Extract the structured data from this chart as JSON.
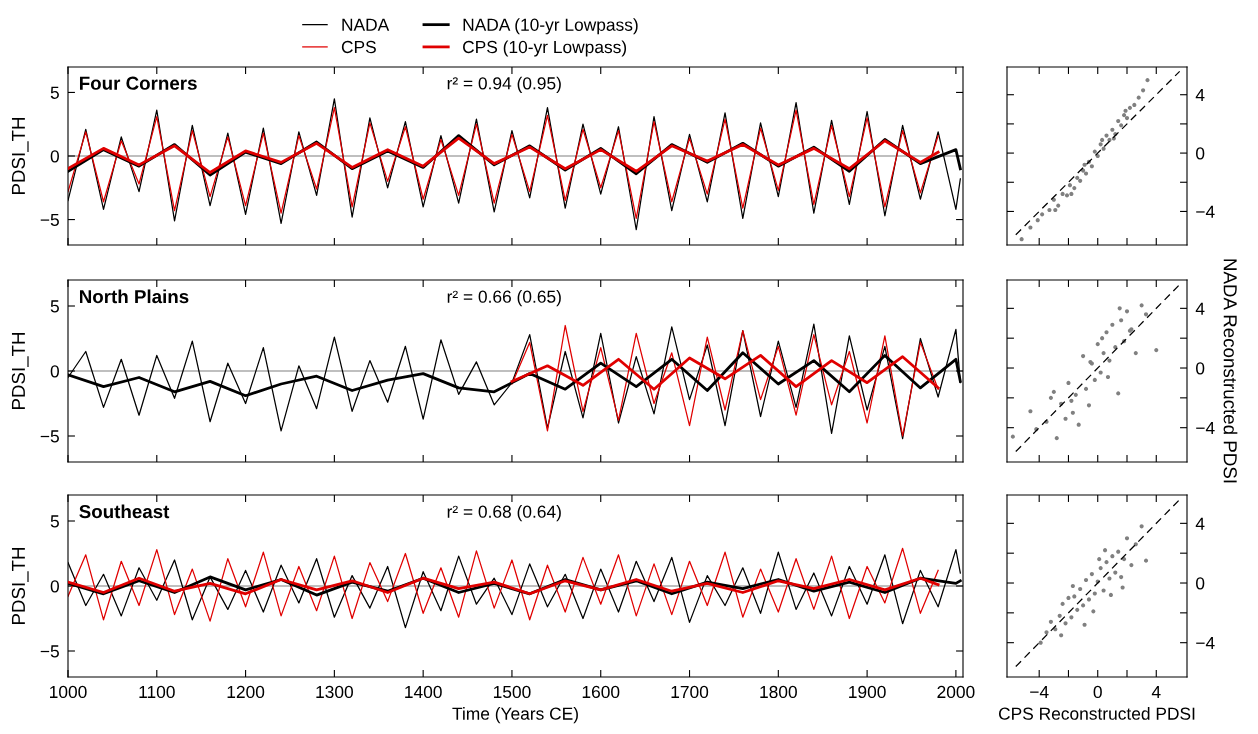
{
  "chart_data": [
    {
      "type": "line",
      "title": "Four Corners",
      "annotations": [
        "r² = 0.94 (0.95)"
      ],
      "ylabel": "PDSI_TH",
      "xlim": [
        1000,
        2008
      ],
      "ylim": [
        -7,
        7
      ],
      "xticks": [
        1000,
        1100,
        1200,
        1300,
        1400,
        1500,
        1600,
        1700,
        1800,
        1900,
        2000
      ],
      "yticks": [
        {
          "value": -5,
          "label": "−5"
        },
        0,
        5
      ],
      "tick_labels": "y",
      "legend": "top",
      "ref_lines": [
        {
          "axis": "y",
          "value": 0,
          "color": "#808080"
        }
      ],
      "series": [
        {
          "name": "NADA",
          "color": "#000000",
          "x": [
            1000,
            1020,
            1040,
            1060,
            1080,
            1100,
            1120,
            1140,
            1160,
            1180,
            1200,
            1220,
            1240,
            1260,
            1280,
            1300,
            1320,
            1340,
            1360,
            1380,
            1400,
            1420,
            1440,
            1460,
            1480,
            1500,
            1520,
            1540,
            1560,
            1580,
            1600,
            1620,
            1640,
            1660,
            1680,
            1700,
            1720,
            1740,
            1760,
            1780,
            1800,
            1820,
            1840,
            1860,
            1880,
            1900,
            1920,
            1940,
            1960,
            1980,
            2000,
            2005
          ],
          "values": [
            -3.5,
            2.1,
            -4.2,
            1.5,
            -2.8,
            3.6,
            -5.1,
            2.4,
            -3.9,
            1.8,
            -4.6,
            2.2,
            -5.3,
            1.9,
            -3.1,
            4.5,
            -4.8,
            3.0,
            -2.5,
            2.7,
            -4.0,
            1.6,
            -3.7,
            2.9,
            -4.4,
            2.0,
            -3.3,
            3.8,
            -4.1,
            2.5,
            -3.0,
            2.3,
            -5.8,
            3.1,
            -4.3,
            1.7,
            -3.6,
            3.4,
            -4.9,
            2.6,
            -3.2,
            4.2,
            -4.5,
            2.8,
            -3.8,
            3.5,
            -4.7,
            2.4,
            -3.4,
            1.9,
            -4.2,
            -1.8
          ]
        },
        {
          "name": "CPS",
          "color": "#e00000",
          "x": [
            1000,
            1020,
            1040,
            1060,
            1080,
            1100,
            1120,
            1140,
            1160,
            1180,
            1200,
            1220,
            1240,
            1260,
            1280,
            1300,
            1320,
            1340,
            1360,
            1380,
            1400,
            1420,
            1440,
            1460,
            1480,
            1500,
            1520,
            1540,
            1560,
            1580,
            1600,
            1620,
            1640,
            1660,
            1680,
            1700,
            1720,
            1740,
            1760,
            1780,
            1800,
            1820,
            1840,
            1860,
            1880,
            1900,
            1920,
            1940,
            1960,
            1980
          ],
          "values": [
            -2.8,
            1.9,
            -3.6,
            1.2,
            -2.2,
            3.1,
            -4.3,
            2.0,
            -3.2,
            1.5,
            -3.9,
            1.8,
            -4.5,
            1.6,
            -2.6,
            3.8,
            -4.0,
            2.6,
            -2.0,
            2.3,
            -3.4,
            1.3,
            -3.1,
            2.5,
            -3.7,
            1.7,
            -2.8,
            3.2,
            -3.5,
            2.1,
            -2.5,
            2.0,
            -4.9,
            2.7,
            -3.6,
            1.4,
            -3.0,
            2.9,
            -4.1,
            2.2,
            -2.7,
            3.6,
            -3.8,
            2.4,
            -3.2,
            3.0,
            -4.0,
            2.0,
            -2.9,
            1.6
          ]
        },
        {
          "name": "NADA (10-yr Lowpass)",
          "color": "#000000",
          "x": [
            1000,
            1040,
            1080,
            1120,
            1160,
            1200,
            1240,
            1280,
            1320,
            1360,
            1400,
            1440,
            1480,
            1520,
            1560,
            1600,
            1640,
            1680,
            1720,
            1760,
            1800,
            1840,
            1880,
            1920,
            1960,
            2000,
            2005
          ],
          "values": [
            -1.2,
            0.5,
            -0.8,
            0.9,
            -1.5,
            0.3,
            -0.6,
            1.1,
            -1.0,
            0.4,
            -0.9,
            1.6,
            -0.7,
            0.8,
            -1.1,
            0.6,
            -1.4,
            0.9,
            -0.5,
            1.0,
            -0.8,
            0.7,
            -1.2,
            1.3,
            -0.6,
            0.5,
            -1.0
          ]
        },
        {
          "name": "CPS (10-yr Lowpass)",
          "color": "#e00000",
          "x": [
            1000,
            1040,
            1080,
            1120,
            1160,
            1200,
            1240,
            1280,
            1320,
            1360,
            1400,
            1440,
            1480,
            1520,
            1560,
            1600,
            1640,
            1680,
            1720,
            1760,
            1800,
            1840,
            1880,
            1920,
            1960,
            1980
          ],
          "values": [
            -1.0,
            0.6,
            -0.7,
            0.8,
            -1.3,
            0.4,
            -0.5,
            1.0,
            -0.9,
            0.5,
            -0.8,
            1.4,
            -0.6,
            0.7,
            -1.0,
            0.5,
            -1.2,
            0.8,
            -0.4,
            0.9,
            -0.7,
            0.6,
            -1.0,
            1.2,
            -0.5,
            0.3
          ]
        }
      ]
    },
    {
      "type": "scatter",
      "xlim": [
        -6.2,
        6.1
      ],
      "ylim": [
        -6.3,
        5.9
      ],
      "xticks": [
        -4,
        {
          "value": -2,
          "label": null
        },
        0,
        {
          "value": 2,
          "label": null
        },
        4
      ],
      "yticks": [
        {
          "value": -4,
          "label": "−4"
        },
        {
          "value": -2,
          "label": null
        },
        0,
        {
          "value": 2,
          "label": null
        },
        4
      ],
      "tick_labels": "y",
      "series": [
        {
          "type": "scatter",
          "marker": "circle",
          "color": "#808080",
          "x": [
            -5.2,
            -4.6,
            -4.1,
            -3.8,
            -3.3,
            -3.0,
            -2.7,
            -2.4,
            -2.1,
            -1.9,
            -1.6,
            -1.4,
            -1.2,
            -1.0,
            -0.8,
            -0.6,
            -0.4,
            -0.2,
            0,
            0.2,
            0.4,
            0.6,
            0.8,
            1.0,
            1.2,
            1.4,
            1.6,
            1.8,
            2.0,
            2.2,
            2.5,
            2.8,
            3.1,
            3.4,
            -1.8,
            -0.9,
            0.3,
            1.1,
            1.9,
            -2.9
          ],
          "values": [
            -5.9,
            -5.1,
            -4.6,
            -4.2,
            -3.9,
            -3.2,
            -3.6,
            -2.8,
            -2.9,
            -2.2,
            -2.4,
            -1.7,
            -1.9,
            -1.2,
            -1.4,
            -0.6,
            -0.9,
            0.1,
            -0.2,
            0.6,
            0.3,
            1.2,
            0.9,
            1.6,
            1.3,
            2.2,
            1.9,
            2.6,
            2.4,
            3.1,
            3.3,
            3.8,
            4.3,
            5.0,
            -2.8,
            -0.8,
            0.9,
            1.0,
            2.9,
            -3.9
          ]
        },
        {
          "type": "line",
          "line_style": "dashed",
          "color": "#000000",
          "x": [
            -5.6,
            5.6
          ],
          "values": [
            -5.6,
            5.6
          ]
        }
      ]
    },
    {
      "type": "line",
      "title": "North Plains",
      "annotations": [
        "r² = 0.66 (0.65)"
      ],
      "ylabel": "PDSI_TH",
      "xlim": [
        1000,
        2008
      ],
      "ylim": [
        -7,
        7
      ],
      "xticks": [
        1000,
        1100,
        1200,
        1300,
        1400,
        1500,
        1600,
        1700,
        1800,
        1900,
        2000
      ],
      "yticks": [
        {
          "value": -5,
          "label": "−5"
        },
        0,
        5
      ],
      "tick_labels": "y",
      "ref_lines": [
        {
          "axis": "y",
          "value": 0,
          "color": "#808080"
        }
      ],
      "series": [
        {
          "color": "#000000",
          "x": [
            1000,
            1020,
            1040,
            1060,
            1080,
            1100,
            1120,
            1140,
            1160,
            1180,
            1200,
            1220,
            1240,
            1260,
            1280,
            1300,
            1320,
            1340,
            1360,
            1380,
            1400,
            1420,
            1440,
            1460,
            1480,
            1500,
            1520,
            1540,
            1560,
            1580,
            1600,
            1620,
            1640,
            1660,
            1680,
            1700,
            1720,
            1740,
            1760,
            1780,
            1800,
            1820,
            1840,
            1860,
            1880,
            1900,
            1920,
            1940,
            1960,
            1980,
            2000,
            2005
          ],
          "values": [
            -0.5,
            1.5,
            -2.8,
            0.9,
            -3.4,
            1.2,
            -2.1,
            2.3,
            -3.9,
            0.6,
            -2.5,
            1.8,
            -4.6,
            0.4,
            -2.9,
            2.6,
            -3.1,
            0.8,
            -2.4,
            1.9,
            -3.7,
            2.4,
            -1.8,
            0.7,
            -2.6,
            -0.9,
            2.8,
            -4.4,
            1.5,
            -3.6,
            2.9,
            -4.0,
            1.1,
            -3.3,
            3.4,
            -2.2,
            2.0,
            -4.2,
            3.1,
            -3.5,
            2.3,
            -2.8,
            3.6,
            -4.8,
            2.7,
            -3.0,
            1.9,
            -5.2,
            2.5,
            -2.0,
            3.2,
            -0.9
          ]
        },
        {
          "color": "#e00000",
          "x": [
            1500,
            1520,
            1540,
            1560,
            1580,
            1600,
            1620,
            1640,
            1660,
            1680,
            1700,
            1720,
            1740,
            1760,
            1780,
            1800,
            1820,
            1840,
            1860,
            1880,
            1900,
            1920,
            1940,
            1960,
            1980
          ],
          "values": [
            -1.0,
            2.2,
            -4.6,
            3.5,
            -3.1,
            1.8,
            -3.8,
            2.9,
            -2.5,
            1.4,
            -4.2,
            2.6,
            -3.0,
            3.1,
            -2.2,
            1.9,
            -3.4,
            2.8,
            -2.6,
            1.5,
            -4.0,
            2.7,
            -5.0,
            2.2,
            -1.4
          ]
        },
        {
          "color": "#000000",
          "x": [
            1000,
            1040,
            1080,
            1120,
            1160,
            1200,
            1240,
            1280,
            1320,
            1360,
            1400,
            1440,
            1480,
            1520,
            1560,
            1600,
            1640,
            1680,
            1720,
            1760,
            1800,
            1840,
            1880,
            1920,
            1960,
            2000,
            2005
          ],
          "values": [
            -0.3,
            -1.2,
            -0.5,
            -1.6,
            -0.8,
            -1.9,
            -1.0,
            -0.4,
            -1.5,
            -0.7,
            -0.2,
            -1.3,
            -1.6,
            -0.2,
            -1.4,
            0.6,
            -1.2,
            0.9,
            -1.5,
            1.4,
            -1.0,
            0.8,
            -1.6,
            1.2,
            -1.3,
            0.9,
            -0.8
          ]
        },
        {
          "color": "#e00000",
          "x": [
            1500,
            1540,
            1580,
            1620,
            1660,
            1700,
            1740,
            1780,
            1820,
            1860,
            1900,
            1940,
            1980
          ],
          "values": [
            -0.8,
            0.4,
            -1.1,
            0.9,
            -1.4,
            1.0,
            -0.6,
            1.2,
            -1.2,
            0.8,
            -0.9,
            1.1,
            -1.3
          ]
        }
      ]
    },
    {
      "type": "scatter",
      "ylabel": "NADA Reconstructed PDSI",
      "xlim": [
        -6.2,
        6.1
      ],
      "ylim": [
        -6.3,
        5.9
      ],
      "xticks": [
        -4,
        {
          "value": -2,
          "label": null
        },
        0,
        {
          "value": 2,
          "label": null
        },
        4
      ],
      "yticks": [
        {
          "value": -4,
          "label": "−4"
        },
        {
          "value": -2,
          "label": null
        },
        0,
        {
          "value": 2,
          "label": null
        },
        4
      ],
      "tick_labels": "y",
      "series": [
        {
          "type": "scatter",
          "marker": "circle",
          "color": "#808080",
          "x": [
            -5.8,
            -4.6,
            -4.2,
            -3.5,
            -3.2,
            -2.8,
            -2.5,
            -2.2,
            -2.0,
            -1.7,
            -1.5,
            -1.3,
            -1.0,
            -0.8,
            -0.6,
            -0.4,
            -0.2,
            0,
            0.2,
            0.4,
            0.6,
            0.8,
            1.0,
            1.2,
            1.4,
            1.6,
            1.8,
            2.0,
            2.3,
            2.6,
            3.0,
            3.3,
            4.0,
            -1.8,
            -0.5,
            0.7,
            1.5,
            2.2,
            -3.0,
            0.3
          ],
          "values": [
            -4.6,
            -2.9,
            -4.1,
            -3.6,
            -2.0,
            -4.7,
            -2.4,
            -3.4,
            -1.0,
            -3.0,
            -1.8,
            -3.8,
            0.8,
            -1.4,
            -2.5,
            0.3,
            -0.8,
            1.6,
            -0.3,
            1.0,
            2.4,
            0.5,
            2.9,
            1.4,
            -1.7,
            3.2,
            1.8,
            3.8,
            2.6,
            1.0,
            4.2,
            3.6,
            1.2,
            -2.2,
            0.4,
            -0.6,
            4.0,
            2.5,
            -1.6,
            2.0
          ]
        },
        {
          "type": "line",
          "line_style": "dashed",
          "color": "#000000",
          "x": [
            -5.6,
            5.6
          ],
          "values": [
            -5.6,
            5.6
          ]
        }
      ]
    },
    {
      "type": "line",
      "title": "Southeast",
      "annotations": [
        "r² = 0.68 (0.64)"
      ],
      "xlabel": "Time (Years CE)",
      "ylabel": "PDSI_TH",
      "xlim": [
        1000,
        2008
      ],
      "ylim": [
        -7,
        7
      ],
      "xticks": [
        1000,
        1100,
        1200,
        1300,
        1400,
        1500,
        1600,
        1700,
        1800,
        1900,
        2000
      ],
      "yticks": [
        {
          "value": -5,
          "label": "−5"
        },
        0,
        5
      ],
      "ref_lines": [
        {
          "axis": "y",
          "value": 0,
          "color": "#808080"
        }
      ],
      "series": [
        {
          "color": "#000000",
          "x": [
            1000,
            1020,
            1040,
            1060,
            1080,
            1100,
            1120,
            1140,
            1160,
            1180,
            1200,
            1220,
            1240,
            1260,
            1280,
            1300,
            1320,
            1340,
            1360,
            1380,
            1400,
            1420,
            1440,
            1460,
            1480,
            1500,
            1520,
            1540,
            1560,
            1580,
            1600,
            1620,
            1640,
            1660,
            1680,
            1700,
            1720,
            1740,
            1760,
            1780,
            1800,
            1820,
            1840,
            1860,
            1880,
            1900,
            1920,
            1940,
            1960,
            1980,
            2000,
            2005
          ],
          "values": [
            1.8,
            -1.5,
            0.9,
            -2.3,
            1.4,
            -1.1,
            2.0,
            -2.6,
            0.7,
            -1.8,
            1.2,
            -2.0,
            1.6,
            -1.3,
            2.1,
            -2.4,
            0.8,
            -1.7,
            1.5,
            -3.2,
            1.1,
            -1.9,
            2.3,
            -1.4,
            0.6,
            -2.2,
            1.7,
            -1.6,
            0.9,
            -2.5,
            1.3,
            -2.0,
            1.9,
            -1.2,
            2.2,
            -2.8,
            0.8,
            -1.5,
            1.4,
            -2.1,
            2.6,
            -1.8,
            1.0,
            -2.3,
            1.5,
            -1.4,
            2.4,
            -2.9,
            1.2,
            -1.6,
            2.8,
            1.0
          ]
        },
        {
          "color": "#e00000",
          "x": [
            1000,
            1020,
            1040,
            1060,
            1080,
            1100,
            1120,
            1140,
            1160,
            1180,
            1200,
            1220,
            1240,
            1260,
            1280,
            1300,
            1320,
            1340,
            1360,
            1380,
            1400,
            1420,
            1440,
            1460,
            1480,
            1500,
            1520,
            1540,
            1560,
            1580,
            1600,
            1620,
            1640,
            1660,
            1680,
            1700,
            1720,
            1740,
            1760,
            1780,
            1800,
            1820,
            1840,
            1860,
            1880,
            1900,
            1920,
            1940,
            1960,
            1980
          ],
          "values": [
            -0.8,
            2.4,
            -2.6,
            1.9,
            -1.5,
            2.8,
            -2.2,
            1.3,
            -2.7,
            2.1,
            -1.6,
            2.6,
            -2.3,
            1.5,
            -1.9,
            2.3,
            -2.5,
            1.8,
            -1.2,
            2.5,
            -2.1,
            1.4,
            -2.4,
            2.7,
            -1.7,
            2.0,
            -2.6,
            1.6,
            -2.0,
            2.2,
            -1.4,
            2.4,
            -2.3,
            1.7,
            -2.2,
            1.9,
            -1.5,
            2.6,
            -2.4,
            1.3,
            -2.0,
            2.1,
            -1.8,
            2.3,
            -2.5,
            1.5,
            -1.3,
            2.9,
            -2.1,
            1.2
          ]
        },
        {
          "color": "#000000",
          "x": [
            1000,
            1040,
            1080,
            1120,
            1160,
            1200,
            1240,
            1280,
            1320,
            1360,
            1400,
            1440,
            1480,
            1520,
            1560,
            1600,
            1640,
            1680,
            1720,
            1760,
            1800,
            1840,
            1880,
            1920,
            1960,
            2000,
            2005
          ],
          "values": [
            0.2,
            -0.6,
            0.4,
            -0.5,
            0.7,
            -0.3,
            0.5,
            -0.7,
            0.3,
            -0.4,
            0.6,
            -0.5,
            0.2,
            -0.6,
            0.5,
            -0.3,
            0.4,
            -0.6,
            0.3,
            -0.2,
            0.5,
            -0.4,
            0.3,
            -0.5,
            0.6,
            0.2,
            0.4
          ]
        },
        {
          "color": "#e00000",
          "x": [
            1000,
            1040,
            1080,
            1120,
            1160,
            1200,
            1240,
            1280,
            1320,
            1360,
            1400,
            1440,
            1480,
            1520,
            1560,
            1600,
            1640,
            1680,
            1720,
            1760,
            1800,
            1840,
            1880,
            1920,
            1960,
            1980
          ],
          "values": [
            0.3,
            -0.5,
            0.6,
            -0.4,
            0.2,
            -0.6,
            0.5,
            -0.3,
            0.4,
            -0.5,
            0.6,
            -0.2,
            0.3,
            -0.6,
            0.4,
            -0.3,
            0.5,
            -0.4,
            0.2,
            -0.5,
            0.4,
            -0.2,
            0.5,
            -0.3,
            0.6,
            0.1
          ]
        }
      ]
    },
    {
      "type": "scatter",
      "xlabel": "CPS Reconstructed PDSI",
      "xlim": [
        -6.2,
        6.1
      ],
      "ylim": [
        -6.3,
        5.9
      ],
      "xticks": [
        {
          "value": -4,
          "label": "−4"
        },
        {
          "value": -2,
          "label": null
        },
        0,
        {
          "value": 2,
          "label": null
        },
        4
      ],
      "yticks": [
        {
          "value": -4,
          "label": "−4"
        },
        {
          "value": -2,
          "label": null
        },
        0,
        {
          "value": 2,
          "label": null
        },
        4
      ],
      "series": [
        {
          "type": "scatter",
          "marker": "circle",
          "color": "#808080",
          "x": [
            -3.9,
            -3.5,
            -3.2,
            -2.9,
            -2.6,
            -2.4,
            -2.2,
            -2.0,
            -1.8,
            -1.6,
            -1.4,
            -1.2,
            -1.0,
            -0.8,
            -0.6,
            -0.4,
            -0.2,
            0,
            0.2,
            0.4,
            0.6,
            0.8,
            1.0,
            1.2,
            1.4,
            1.6,
            1.8,
            2.0,
            2.3,
            2.6,
            3.0,
            3.3,
            -1.7,
            -0.9,
            0.1,
            0.9,
            1.7,
            -2.5,
            -0.3,
            0.5
          ],
          "values": [
            -4.0,
            -3.3,
            -2.6,
            -3.1,
            -2.2,
            -1.4,
            -2.7,
            -1.0,
            -2.3,
            -0.9,
            -1.8,
            -0.4,
            -1.5,
            0.2,
            -1.1,
            0.6,
            -0.7,
            0.1,
            1.0,
            -0.5,
            1.4,
            0.3,
            1.8,
            0.7,
            2.1,
            0.4,
            1.6,
            3.0,
            1.2,
            2.6,
            3.8,
            1.5,
            -0.2,
            -2.8,
            1.6,
            -0.8,
            -0.3,
            -3.5,
            -1.9,
            2.2
          ]
        },
        {
          "type": "line",
          "line_style": "dashed",
          "color": "#000000",
          "x": [
            -5.6,
            5.6
          ],
          "values": [
            -5.6,
            5.6
          ]
        }
      ]
    }
  ]
}
